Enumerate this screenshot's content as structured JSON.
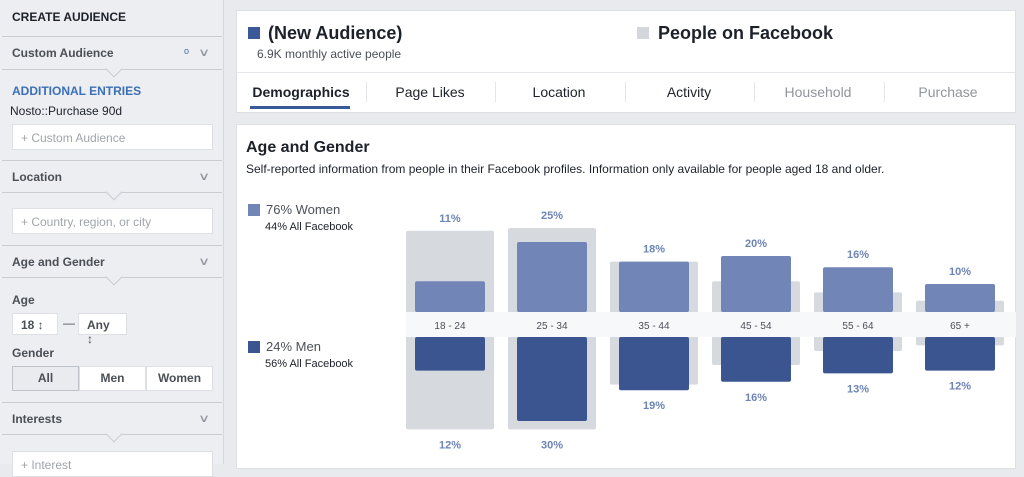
{
  "sidebar": {
    "title": "CREATE AUDIENCE",
    "custom_audience": {
      "label": "Custom Audience",
      "additional_label": "ADDITIONAL ENTRIES",
      "entry": "Nosto::Purchase 90d",
      "placeholder": "+ Custom Audience"
    },
    "location": {
      "label": "Location",
      "placeholder": "+ Country, region, or city"
    },
    "age_gender": {
      "label": "Age and Gender",
      "age_label": "Age",
      "age_min": "18 ↕",
      "age_dash": "—",
      "age_max": "Any ↕",
      "gender_label": "Gender",
      "genders": [
        "All",
        "Men",
        "Women"
      ],
      "selected_gender": "All"
    },
    "interests": {
      "label": "Interests",
      "placeholder": "+ Interest"
    }
  },
  "header": {
    "audience_name": "(New Audience)",
    "audience_sub": "6.9K monthly active people",
    "compare_name": "People on Facebook",
    "audience_color": "#3b5998",
    "compare_color": "#d3d6db"
  },
  "tabs": [
    {
      "label": "Demographics",
      "active": true
    },
    {
      "label": "Page Likes"
    },
    {
      "label": "Location"
    },
    {
      "label": "Activity"
    },
    {
      "label": "Household",
      "disabled": true
    },
    {
      "label": "Purchase",
      "disabled": true
    }
  ],
  "section": {
    "title": "Age and Gender",
    "description": "Self-reported information from people in their Facebook profiles. Information only available for people aged 18 and older."
  },
  "legend": {
    "women": {
      "label": "76% Women",
      "sub": "44% All Facebook",
      "color": "#7186b6"
    },
    "men": {
      "label": "24% Men",
      "sub": "56% All Facebook",
      "color": "#3b5591"
    }
  },
  "chart_data": {
    "type": "bar",
    "categories": [
      "18 - 24",
      "25 - 34",
      "35 - 44",
      "45 - 54",
      "55 - 64",
      "65 +"
    ],
    "series": [
      {
        "name": "Women",
        "values": [
          11,
          25,
          18,
          20,
          16,
          10
        ],
        "labels": [
          "11%",
          "25%",
          "18%",
          "20%",
          "16%",
          "10%"
        ],
        "color": "#7186b6",
        "direction": "up"
      },
      {
        "name": "Men",
        "values": [
          12,
          30,
          19,
          16,
          13,
          12
        ],
        "labels": [
          "12%",
          "30%",
          "19%",
          "16%",
          "13%",
          "12%"
        ],
        "color": "#3b5591",
        "direction": "down"
      },
      {
        "benchmark": "All Facebook",
        "women": [
          29,
          30,
          18,
          11,
          7,
          4
        ],
        "men": [
          33,
          33,
          17,
          10,
          5,
          3
        ],
        "color": "#d6d9de"
      }
    ],
    "grid": false
  }
}
